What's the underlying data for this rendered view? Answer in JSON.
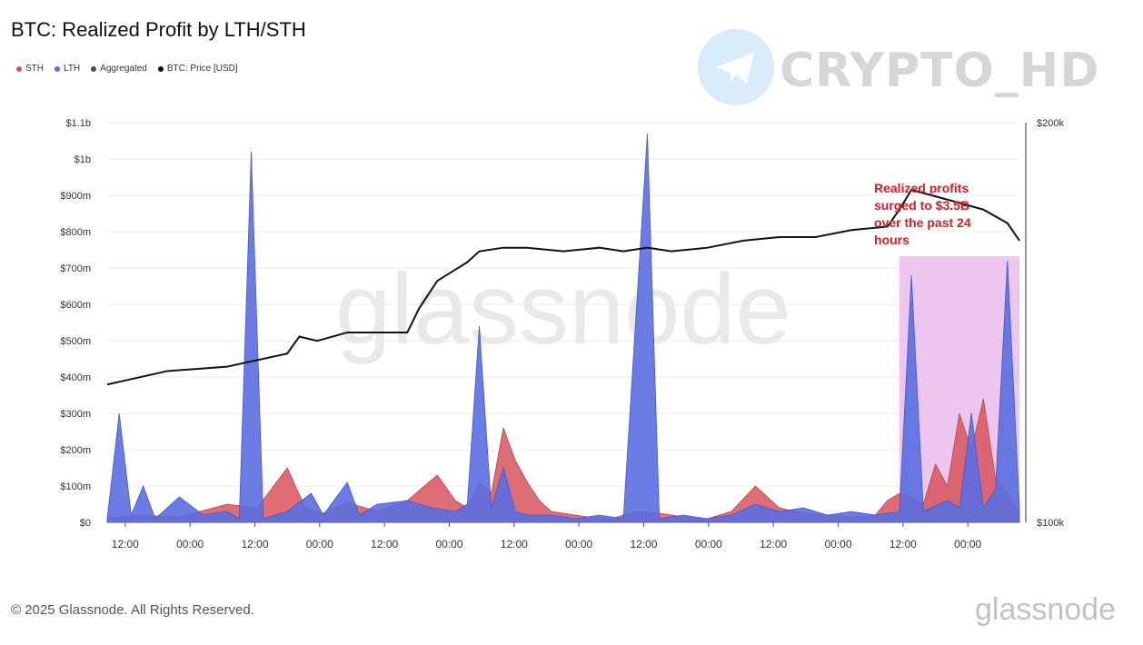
{
  "title": "BTC: Realized Profit by LTH/STH",
  "legend": [
    {
      "label": "STH",
      "color": "#d9545e"
    },
    {
      "label": "LTH",
      "color": "#5b6ee1"
    },
    {
      "label": "Aggregated",
      "color": "#4a4a5a"
    },
    {
      "label": "BTC: Price [USD]",
      "color": "#111111"
    }
  ],
  "watermark_brand": "CRYPTO_HD",
  "watermark_chart": "glassnode",
  "footer": {
    "copyright": "© 2025 Glassnode. All Rights Reserved.",
    "logo": "glassnode"
  },
  "annotation": "Realized profits surged to $3.5B over the past 24 hours",
  "colors": {
    "sth": "#d9545e",
    "lth": "#5b6ee1",
    "price": "#111111",
    "highlight": "#e6b3ea",
    "annotation": "#d0202a"
  },
  "chart_data": {
    "type": "area",
    "x_tick_labels": [
      "12:00",
      "00:00",
      "12:00",
      "00:00",
      "12:00",
      "00:00",
      "12:00",
      "00:00",
      "12:00",
      "00:00",
      "12:00",
      "00:00",
      "12:00",
      "00:00"
    ],
    "y_tick_labels": [
      "$0",
      "$100m",
      "$200m",
      "$300m",
      "$400m",
      "$500m",
      "$600m",
      "$700m",
      "$800m",
      "$900m",
      "$1b",
      "$1.1b"
    ],
    "y2_tick_labels": [
      "$100k",
      "$200k"
    ],
    "ylim": [
      0,
      1100
    ],
    "y_unit": "millions USD",
    "y2lim": [
      100000,
      200000
    ],
    "y2scale": "log",
    "highlight_window": [
      132,
      152
    ],
    "series": [
      {
        "name": "STH",
        "points": [
          [
            0,
            10
          ],
          [
            5,
            20
          ],
          [
            12,
            15
          ],
          [
            20,
            50
          ],
          [
            25,
            40
          ],
          [
            30,
            150
          ],
          [
            33,
            40
          ],
          [
            36,
            25
          ],
          [
            40,
            55
          ],
          [
            45,
            30
          ],
          [
            50,
            60
          ],
          [
            55,
            130
          ],
          [
            58,
            60
          ],
          [
            60,
            40
          ],
          [
            62,
            110
          ],
          [
            64,
            80
          ],
          [
            66,
            260
          ],
          [
            68,
            170
          ],
          [
            70,
            110
          ],
          [
            72,
            60
          ],
          [
            74,
            30
          ],
          [
            78,
            20
          ],
          [
            80,
            15
          ],
          [
            84,
            10
          ],
          [
            88,
            30
          ],
          [
            92,
            25
          ],
          [
            96,
            15
          ],
          [
            100,
            10
          ],
          [
            104,
            30
          ],
          [
            108,
            100
          ],
          [
            112,
            40
          ],
          [
            116,
            25
          ],
          [
            120,
            20
          ],
          [
            124,
            15
          ],
          [
            128,
            20
          ],
          [
            130,
            60
          ],
          [
            132,
            80
          ],
          [
            134,
            70
          ],
          [
            136,
            50
          ],
          [
            138,
            160
          ],
          [
            140,
            100
          ],
          [
            142,
            300
          ],
          [
            144,
            200
          ],
          [
            146,
            340
          ],
          [
            148,
            120
          ],
          [
            150,
            80
          ],
          [
            152,
            30
          ]
        ]
      },
      {
        "name": "LTH",
        "points": [
          [
            0,
            10
          ],
          [
            2,
            300
          ],
          [
            4,
            20
          ],
          [
            6,
            100
          ],
          [
            8,
            10
          ],
          [
            12,
            70
          ],
          [
            16,
            20
          ],
          [
            20,
            30
          ],
          [
            22,
            10
          ],
          [
            24,
            1020
          ],
          [
            26,
            10
          ],
          [
            30,
            30
          ],
          [
            34,
            80
          ],
          [
            36,
            20
          ],
          [
            40,
            110
          ],
          [
            42,
            20
          ],
          [
            45,
            50
          ],
          [
            50,
            60
          ],
          [
            54,
            40
          ],
          [
            58,
            30
          ],
          [
            60,
            50
          ],
          [
            62,
            540
          ],
          [
            64,
            40
          ],
          [
            66,
            150
          ],
          [
            68,
            30
          ],
          [
            70,
            20
          ],
          [
            74,
            20
          ],
          [
            78,
            10
          ],
          [
            82,
            20
          ],
          [
            86,
            10
          ],
          [
            90,
            1070
          ],
          [
            92,
            10
          ],
          [
            96,
            20
          ],
          [
            100,
            10
          ],
          [
            104,
            20
          ],
          [
            108,
            50
          ],
          [
            112,
            30
          ],
          [
            116,
            40
          ],
          [
            120,
            20
          ],
          [
            124,
            30
          ],
          [
            128,
            20
          ],
          [
            132,
            30
          ],
          [
            134,
            680
          ],
          [
            136,
            30
          ],
          [
            140,
            60
          ],
          [
            142,
            40
          ],
          [
            144,
            300
          ],
          [
            146,
            40
          ],
          [
            148,
            90
          ],
          [
            150,
            720
          ],
          [
            152,
            40
          ]
        ]
      },
      {
        "name": "BTC: Price [USD]",
        "points": [
          [
            0,
            127000
          ],
          [
            10,
            130000
          ],
          [
            20,
            131000
          ],
          [
            30,
            134000
          ],
          [
            32,
            138000
          ],
          [
            35,
            137000
          ],
          [
            40,
            139000
          ],
          [
            45,
            139000
          ],
          [
            50,
            139000
          ],
          [
            52,
            145000
          ],
          [
            55,
            152000
          ],
          [
            58,
            155000
          ],
          [
            60,
            157000
          ],
          [
            62,
            160000
          ],
          [
            66,
            161000
          ],
          [
            70,
            161000
          ],
          [
            76,
            160000
          ],
          [
            82,
            161000
          ],
          [
            86,
            160000
          ],
          [
            90,
            161000
          ],
          [
            94,
            160000
          ],
          [
            100,
            161000
          ],
          [
            106,
            163000
          ],
          [
            112,
            164000
          ],
          [
            118,
            164000
          ],
          [
            124,
            166000
          ],
          [
            130,
            167000
          ],
          [
            132,
            172000
          ],
          [
            134,
            178000
          ],
          [
            138,
            176000
          ],
          [
            142,
            174000
          ],
          [
            146,
            172000
          ],
          [
            150,
            168000
          ],
          [
            152,
            163000
          ]
        ]
      }
    ]
  }
}
